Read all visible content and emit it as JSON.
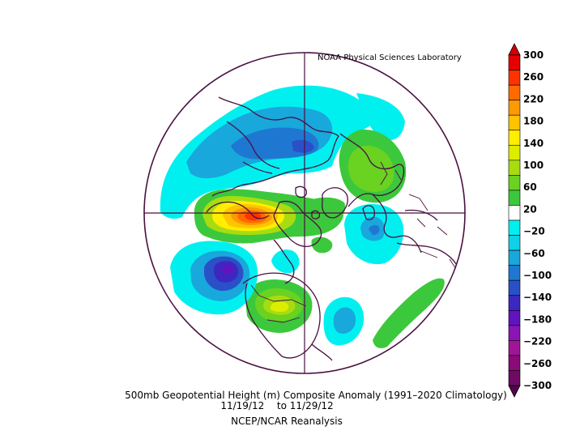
{
  "credit": "NOAA Physical Sciences Laboratory",
  "title": "500mb Geopotential Height (m) Composite Anomaly (1991–2020 Climatology)",
  "dates": {
    "start": "11/19/12",
    "separator": "to",
    "end": "11/29/12"
  },
  "source": "NCEP/NCAR Reanalysis",
  "colorbar": {
    "tick_labels": [
      "300",
      "260",
      "220",
      "180",
      "140",
      "100",
      "60",
      "20",
      "−20",
      "−60",
      "−100",
      "−140",
      "−180",
      "−220",
      "−260",
      "−300"
    ],
    "bins": [
      {
        "color": "#e60000"
      },
      {
        "color": "#ff3300"
      },
      {
        "color": "#ff6a00"
      },
      {
        "color": "#ff9900"
      },
      {
        "color": "#ffc400"
      },
      {
        "color": "#ffee00"
      },
      {
        "color": "#dcee00"
      },
      {
        "color": "#a8dc10"
      },
      {
        "color": "#6ad220"
      },
      {
        "color": "#3cc83c"
      },
      {
        "color": "#ffffff"
      },
      {
        "color": "#00f0f0"
      },
      {
        "color": "#10d0e8"
      },
      {
        "color": "#18a8dc"
      },
      {
        "color": "#1e78d2"
      },
      {
        "color": "#2a50c8"
      },
      {
        "color": "#3c28c0"
      },
      {
        "color": "#6014c0"
      },
      {
        "color": "#8a14b4"
      },
      {
        "color": "#a01496"
      },
      {
        "color": "#8c0a78"
      },
      {
        "color": "#6e0a64"
      }
    ],
    "top_arrow_color": "#d20000",
    "bottom_arrow_color": "#50064a"
  },
  "map": {
    "projection": "north-polar-stereographic",
    "border_color": "#4a1040",
    "coast_color": "#4a1040"
  }
}
